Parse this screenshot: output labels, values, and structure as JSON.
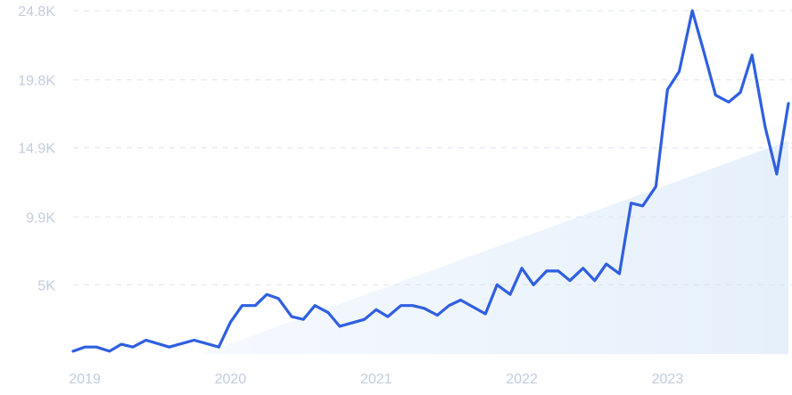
{
  "chart_data": {
    "type": "line",
    "title": "",
    "xlabel": "",
    "ylabel": "",
    "y_ticks": [
      "5K",
      "9.9K",
      "14.9K",
      "19.8K",
      "24.8K"
    ],
    "y_tick_values": [
      5000,
      9900,
      14900,
      19800,
      24800
    ],
    "x_ticks": [
      "2019",
      "2020",
      "2021",
      "2022",
      "2023"
    ],
    "x_tick_values": [
      2019,
      2020,
      2021,
      2022,
      2023
    ],
    "ylim": [
      0,
      24800
    ],
    "xlim": [
      2018.92,
      2023.83
    ],
    "grid": true,
    "colors": {
      "line": "#2f5fe0",
      "trend_fill": "#eaf2fc",
      "grid": "#dde3ec",
      "tick_text": "#c2ccdb"
    },
    "trend": {
      "x": [
        2019.8,
        2023.83
      ],
      "y": [
        0,
        15400
      ]
    },
    "series": [
      {
        "x": [
          2018.92,
          2019.0,
          2019.08,
          2019.17,
          2019.25,
          2019.33,
          2019.42,
          2019.58,
          2019.75,
          2019.92,
          2020.0,
          2020.08,
          2020.17,
          2020.25,
          2020.33,
          2020.42,
          2020.5,
          2020.58,
          2020.67,
          2020.75,
          2020.92,
          2021.0,
          2021.08,
          2021.17,
          2021.25,
          2021.33,
          2021.42,
          2021.5,
          2021.58,
          2021.75,
          2021.83,
          2021.92,
          2022.0,
          2022.08,
          2022.17,
          2022.25,
          2022.33,
          2022.42,
          2022.5,
          2022.58,
          2022.67,
          2022.75,
          2022.83,
          2022.92,
          2023.0,
          2023.08,
          2023.17,
          2023.25,
          2023.33,
          2023.42,
          2023.5,
          2023.58,
          2023.67,
          2023.75,
          2023.83
        ],
        "y": [
          200,
          500,
          500,
          200,
          700,
          500,
          1000,
          500,
          1000,
          500,
          2300,
          3500,
          3500,
          4300,
          4000,
          2700,
          2500,
          3500,
          3000,
          2000,
          2500,
          3200,
          2700,
          3500,
          3500,
          3300,
          2800,
          3500,
          3900,
          2900,
          5000,
          4300,
          6200,
          5000,
          6000,
          6000,
          5300,
          6200,
          5300,
          6500,
          5800,
          10900,
          10700,
          12100,
          19100,
          20400,
          24800,
          21800,
          18700,
          18200,
          18900,
          21600,
          16400,
          13000,
          18100
        ]
      }
    ]
  }
}
